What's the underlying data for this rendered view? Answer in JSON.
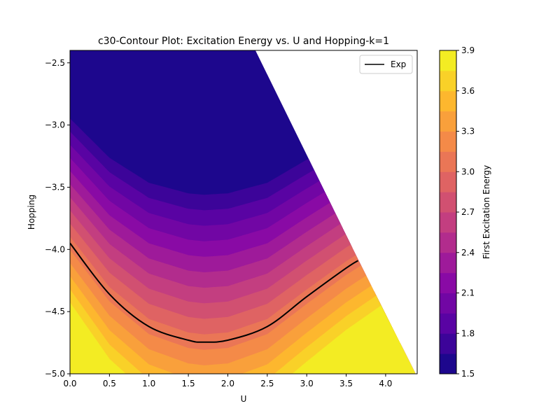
{
  "chart_data": {
    "type": "contour",
    "title": "c30-Contour Plot: Excitation Energy vs. U and Hopping-k=1",
    "xlabel": "U",
    "ylabel": "Hopping",
    "xlim": [
      0.0,
      4.4
    ],
    "ylim": [
      -5.0,
      -2.4
    ],
    "x_ticks": [
      "0.0",
      "0.5",
      "1.0",
      "1.5",
      "2.0",
      "2.5",
      "3.0",
      "3.5",
      "4.0"
    ],
    "y_ticks": [
      "-5.0",
      "-4.5",
      "-4.0",
      "-3.5",
      "-3.0",
      "-2.5"
    ],
    "grid": false,
    "colormap": "plasma",
    "colorbar": {
      "label": "First Excitation Energy",
      "range": [
        1.5,
        3.9
      ],
      "level_step": 0.15,
      "ticks": [
        "1.5",
        "1.8",
        "2.1",
        "2.4",
        "2.7",
        "3.0",
        "3.3",
        "3.6",
        "3.9"
      ]
    },
    "valid_region_boundary": [
      {
        "x": 4.38,
        "y": -5.0
      },
      {
        "x": 3.65,
        "y": -4.08
      },
      {
        "x": 2.35,
        "y": -2.4
      }
    ],
    "series": [
      {
        "name": "Exp",
        "color": "#000000",
        "points": [
          {
            "x": 0.0,
            "y": -3.95
          },
          {
            "x": 0.5,
            "y": -4.36
          },
          {
            "x": 1.0,
            "y": -4.62
          },
          {
            "x": 1.5,
            "y": -4.73
          },
          {
            "x": 1.7,
            "y": -4.745
          },
          {
            "x": 2.0,
            "y": -4.73
          },
          {
            "x": 2.5,
            "y": -4.62
          },
          {
            "x": 3.0,
            "y": -4.38
          },
          {
            "x": 3.5,
            "y": -4.15
          },
          {
            "x": 3.65,
            "y": -4.09
          }
        ]
      }
    ],
    "legend": {
      "placement": "top-right",
      "entries": [
        "Exp"
      ]
    }
  }
}
